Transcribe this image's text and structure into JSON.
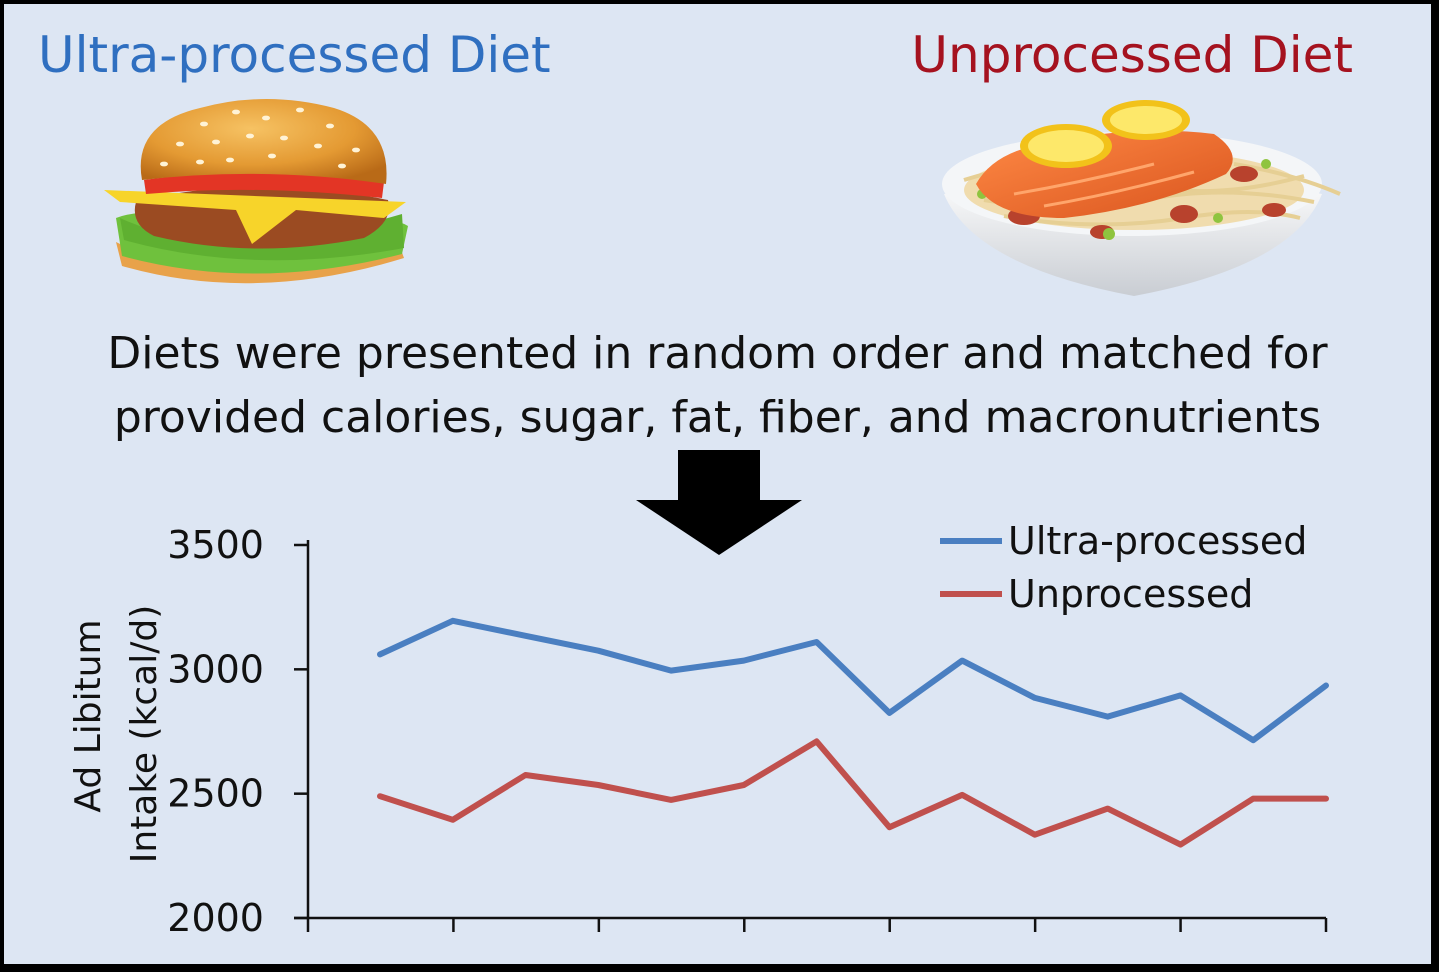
{
  "header": {
    "ultra_title": "Ultra-processed Diet",
    "unprocessed_title": "Unprocessed Diet"
  },
  "images": {
    "left": "burger-illustration",
    "right": "salmon-pasta-bowl-illustration"
  },
  "caption": {
    "line1": "Diets were presented in random order and matched for",
    "line2": "provided calories, sugar, fat, fiber, and macronutrients"
  },
  "colors": {
    "ultra": "#4a7fc1",
    "unprocessed": "#c0504d",
    "axis": "#111111",
    "arrow": "#000000"
  },
  "chart_data": {
    "type": "line",
    "x": [
      1,
      2,
      3,
      4,
      5,
      6,
      7,
      8,
      9,
      10,
      11,
      12,
      13,
      14
    ],
    "ylim": [
      2000,
      3500
    ],
    "yticks": [
      2000,
      2500,
      3000,
      3500
    ],
    "ylabel_line1": "Ad Libitum",
    "ylabel_line2": "Intake (kcal/d)",
    "legend_position": "top-right",
    "series": [
      {
        "name": "Ultra-processed",
        "color": "#4a7fc1",
        "values": [
          3060,
          3195,
          3135,
          3075,
          2995,
          3035,
          3110,
          2825,
          3035,
          2885,
          2810,
          2895,
          2715,
          2935
        ]
      },
      {
        "name": "Unprocessed",
        "color": "#c0504d",
        "values": [
          2490,
          2395,
          2575,
          2535,
          2475,
          2535,
          2710,
          2365,
          2495,
          2335,
          2440,
          2295,
          2480,
          2480
        ]
      }
    ]
  }
}
